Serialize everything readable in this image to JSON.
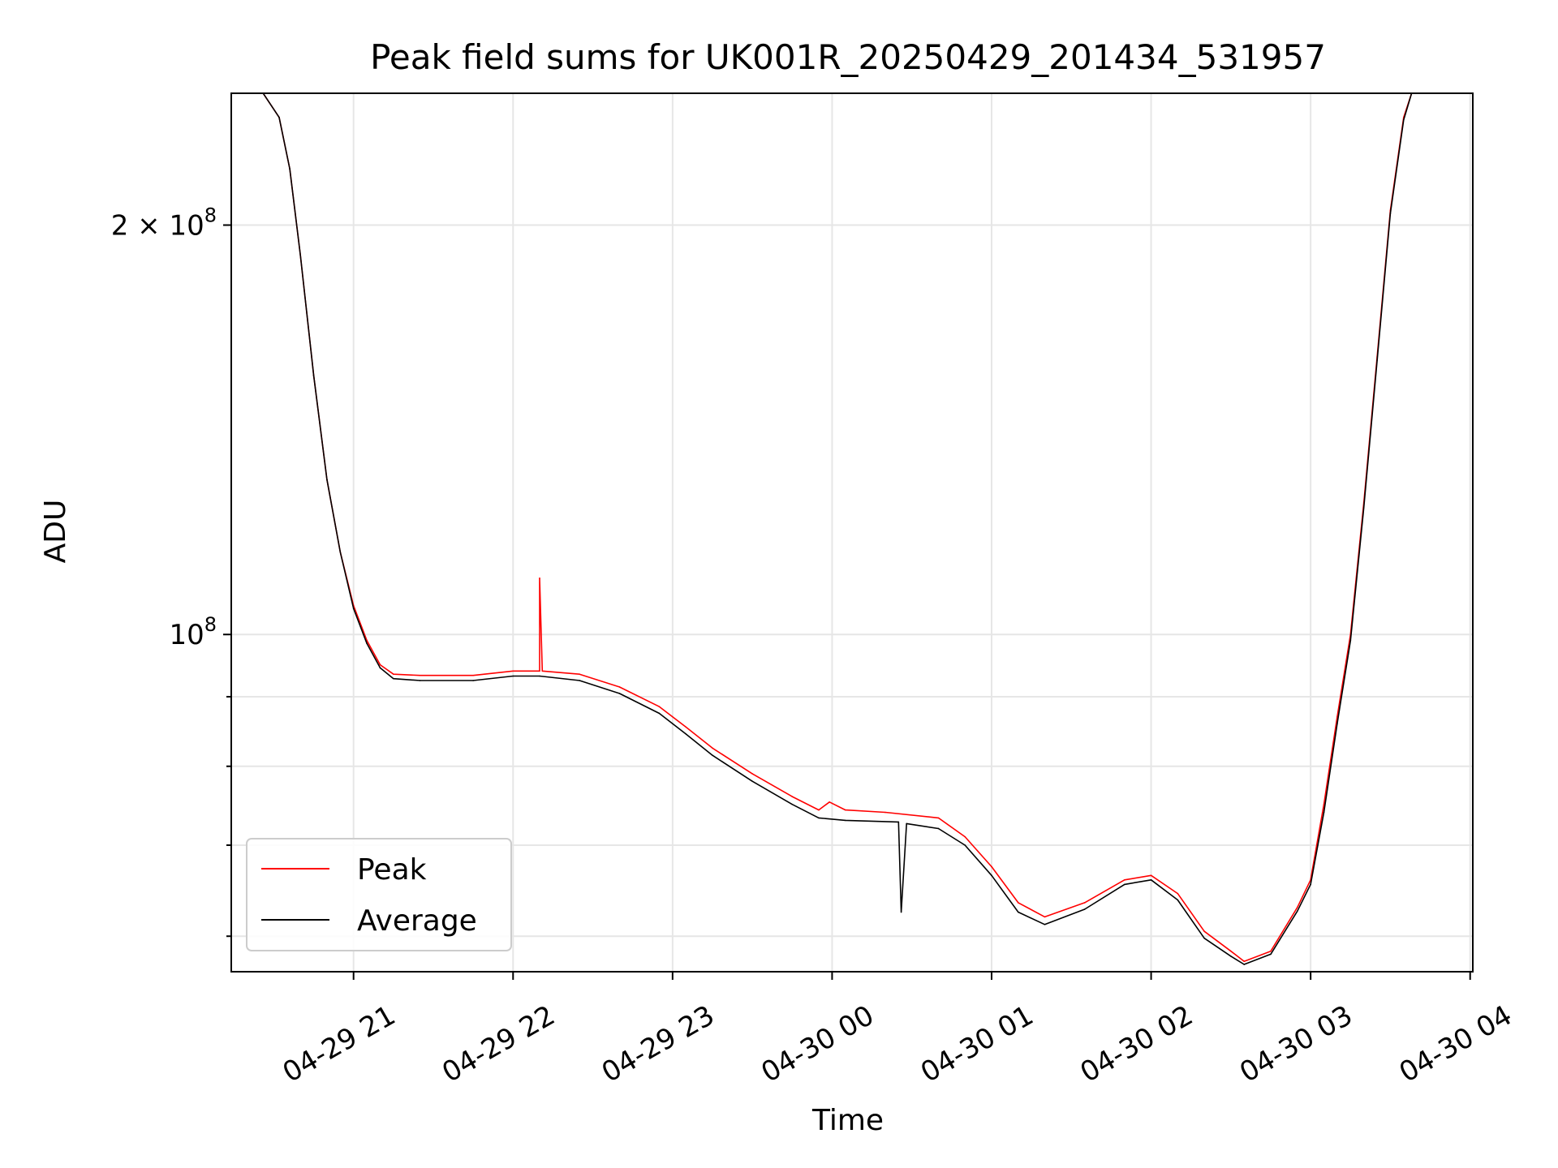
{
  "chart_data": {
    "type": "line",
    "title": "Peak field sums for UK001R_20250429_201434_531957",
    "xlabel": "Time",
    "ylabel": "ADU",
    "y_scale": "log",
    "x_range": [
      "2025-04-29 20:14",
      "2025-04-30 04:01"
    ],
    "ylim": [
      56500000,
      250000000
    ],
    "x_ticks": [
      {
        "t": "2025-04-29 21:00",
        "label": "04-29 21"
      },
      {
        "t": "2025-04-29 22:00",
        "label": "04-29 22"
      },
      {
        "t": "2025-04-29 23:00",
        "label": "04-29 23"
      },
      {
        "t": "2025-04-30 00:00",
        "label": "04-30 00"
      },
      {
        "t": "2025-04-30 01:00",
        "label": "04-30 01"
      },
      {
        "t": "2025-04-30 02:00",
        "label": "04-30 02"
      },
      {
        "t": "2025-04-30 03:00",
        "label": "04-30 03"
      },
      {
        "t": "2025-04-30 04:00",
        "label": "04-30 04"
      }
    ],
    "y_major_ticks": [
      {
        "value": 100000000,
        "label_base": "10",
        "label_exp": "8"
      },
      {
        "value": 200000000,
        "label_base": "2 × 10",
        "label_exp": "8"
      }
    ],
    "y_minor_ticks": [
      60000000,
      70000000,
      80000000,
      90000000
    ],
    "grid": true,
    "legend_position": "lower-left",
    "series": [
      {
        "name": "Peak",
        "color": "#ff0000",
        "points": [
          [
            "2025-04-29 20:14",
            250000000
          ],
          [
            "2025-04-29 20:26",
            250000000
          ],
          [
            "2025-04-29 20:32",
            240000000
          ],
          [
            "2025-04-29 20:36",
            220000000
          ],
          [
            "2025-04-29 20:40",
            190000000
          ],
          [
            "2025-04-29 20:45",
            155000000
          ],
          [
            "2025-04-29 20:50",
            130000000
          ],
          [
            "2025-04-29 20:55",
            115000000
          ],
          [
            "2025-04-29 21:00",
            105000000
          ],
          [
            "2025-04-29 21:05",
            99000000
          ],
          [
            "2025-04-29 21:10",
            95000000
          ],
          [
            "2025-04-29 21:15",
            93500000
          ],
          [
            "2025-04-29 21:25",
            93300000
          ],
          [
            "2025-04-29 21:45",
            93300000
          ],
          [
            "2025-04-29 22:00",
            94000000
          ],
          [
            "2025-04-29 22:10",
            94000000
          ],
          [
            "2025-04-29 22:10",
            110000000
          ],
          [
            "2025-04-29 22:11",
            94000000
          ],
          [
            "2025-04-29 22:25",
            93500000
          ],
          [
            "2025-04-29 22:40",
            91500000
          ],
          [
            "2025-04-29 22:55",
            88500000
          ],
          [
            "2025-04-29 23:05",
            85500000
          ],
          [
            "2025-04-29 23:15",
            82500000
          ],
          [
            "2025-04-29 23:30",
            79000000
          ],
          [
            "2025-04-29 23:45",
            76000000
          ],
          [
            "2025-04-29 23:55",
            74300000
          ],
          [
            "2025-04-29 23:59",
            75300000
          ],
          [
            "2025-04-30 00:05",
            74300000
          ],
          [
            "2025-04-30 00:20",
            74000000
          ],
          [
            "2025-04-30 00:40",
            73300000
          ],
          [
            "2025-04-30 00:50",
            71000000
          ],
          [
            "2025-04-30 01:00",
            67500000
          ],
          [
            "2025-04-30 01:10",
            63500000
          ],
          [
            "2025-04-30 01:20",
            62000000
          ],
          [
            "2025-04-30 01:35",
            63500000
          ],
          [
            "2025-04-30 01:50",
            66000000
          ],
          [
            "2025-04-30 02:00",
            66500000
          ],
          [
            "2025-04-30 02:10",
            64500000
          ],
          [
            "2025-04-30 02:20",
            60500000
          ],
          [
            "2025-04-30 02:30",
            58500000
          ],
          [
            "2025-04-30 02:35",
            57500000
          ],
          [
            "2025-04-30 02:45",
            58500000
          ],
          [
            "2025-04-30 02:55",
            63000000
          ],
          [
            "2025-04-30 03:00",
            66000000
          ],
          [
            "2025-04-30 03:05",
            75000000
          ],
          [
            "2025-04-30 03:10",
            87000000
          ],
          [
            "2025-04-30 03:15",
            100000000
          ],
          [
            "2025-04-30 03:20",
            125000000
          ],
          [
            "2025-04-30 03:25",
            160000000
          ],
          [
            "2025-04-30 03:30",
            205000000
          ],
          [
            "2025-04-30 03:35",
            240000000
          ],
          [
            "2025-04-30 03:38",
            250000000
          ],
          [
            "2025-04-30 04:01",
            250000000
          ]
        ]
      },
      {
        "name": "Average",
        "color": "#000000",
        "points": [
          [
            "2025-04-29 20:14",
            250000000
          ],
          [
            "2025-04-29 20:26",
            250000000
          ],
          [
            "2025-04-29 20:32",
            240000000
          ],
          [
            "2025-04-29 20:36",
            220000000
          ],
          [
            "2025-04-29 20:40",
            190000000
          ],
          [
            "2025-04-29 20:45",
            155000000
          ],
          [
            "2025-04-29 20:50",
            130000000
          ],
          [
            "2025-04-29 20:55",
            115000000
          ],
          [
            "2025-04-29 21:00",
            104500000
          ],
          [
            "2025-04-29 21:05",
            98500000
          ],
          [
            "2025-04-29 21:10",
            94500000
          ],
          [
            "2025-04-29 21:15",
            92800000
          ],
          [
            "2025-04-29 21:25",
            92500000
          ],
          [
            "2025-04-29 21:45",
            92500000
          ],
          [
            "2025-04-29 22:00",
            93200000
          ],
          [
            "2025-04-29 22:10",
            93200000
          ],
          [
            "2025-04-29 22:25",
            92500000
          ],
          [
            "2025-04-29 22:40",
            90500000
          ],
          [
            "2025-04-29 22:55",
            87500000
          ],
          [
            "2025-04-29 23:05",
            84500000
          ],
          [
            "2025-04-29 23:15",
            81500000
          ],
          [
            "2025-04-29 23:30",
            78000000
          ],
          [
            "2025-04-29 23:45",
            75000000
          ],
          [
            "2025-04-29 23:55",
            73300000
          ],
          [
            "2025-04-30 00:05",
            73000000
          ],
          [
            "2025-04-30 00:25",
            72800000
          ],
          [
            "2025-04-30 00:26",
            62500000
          ],
          [
            "2025-04-30 00:28",
            72600000
          ],
          [
            "2025-04-30 00:40",
            72000000
          ],
          [
            "2025-04-30 00:50",
            70000000
          ],
          [
            "2025-04-30 01:00",
            66500000
          ],
          [
            "2025-04-30 01:10",
            62500000
          ],
          [
            "2025-04-30 01:20",
            61200000
          ],
          [
            "2025-04-30 01:35",
            62800000
          ],
          [
            "2025-04-30 01:50",
            65500000
          ],
          [
            "2025-04-30 02:00",
            66000000
          ],
          [
            "2025-04-30 02:10",
            63800000
          ],
          [
            "2025-04-30 02:20",
            59800000
          ],
          [
            "2025-04-30 02:30",
            58000000
          ],
          [
            "2025-04-30 02:35",
            57200000
          ],
          [
            "2025-04-30 02:45",
            58200000
          ],
          [
            "2025-04-30 02:55",
            62600000
          ],
          [
            "2025-04-30 03:00",
            65500000
          ],
          [
            "2025-04-30 03:05",
            74000000
          ],
          [
            "2025-04-30 03:10",
            86000000
          ],
          [
            "2025-04-30 03:15",
            99000000
          ],
          [
            "2025-04-30 03:20",
            124000000
          ],
          [
            "2025-04-30 03:25",
            159000000
          ],
          [
            "2025-04-30 03:30",
            204000000
          ],
          [
            "2025-04-30 03:35",
            239000000
          ],
          [
            "2025-04-30 03:38",
            250000000
          ],
          [
            "2025-04-30 04:01",
            250000000
          ]
        ]
      }
    ]
  }
}
